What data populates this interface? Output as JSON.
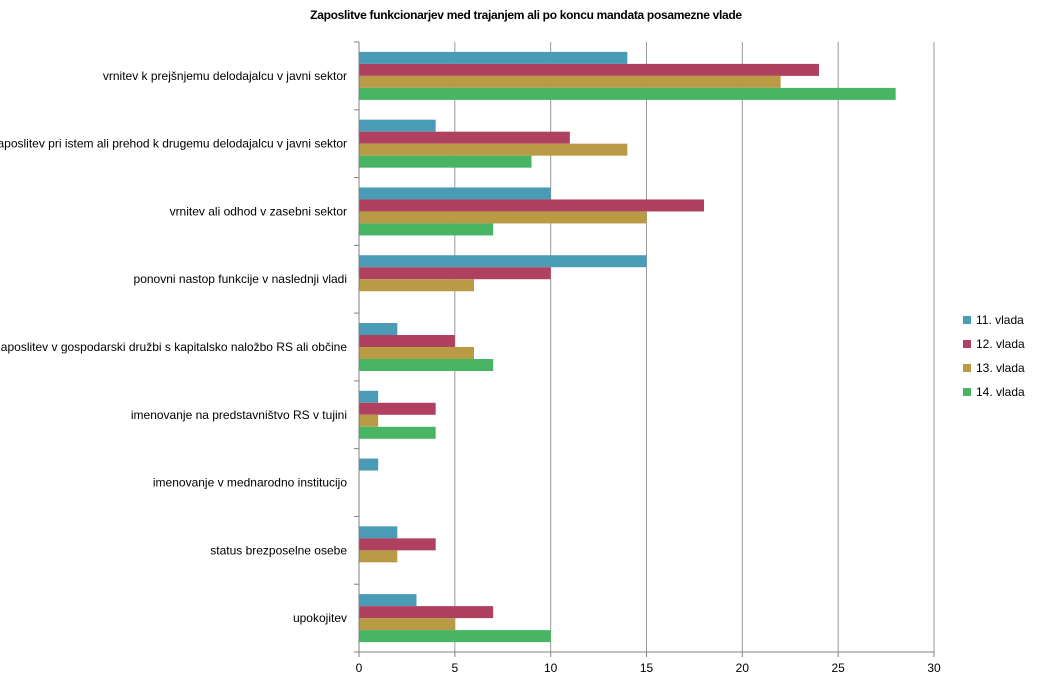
{
  "chart_data": {
    "type": "bar",
    "orientation": "horizontal",
    "title": "Zaposlitve funkcionarjev med trajanjem ali po koncu mandata posamezne vlade",
    "xlabel": "",
    "ylabel": "",
    "xlim": [
      0,
      30
    ],
    "x_ticks": [
      "0",
      "5",
      "10",
      "15",
      "20",
      "25",
      "30"
    ],
    "grid": "vertical",
    "legend_position": "right",
    "categories": [
      "vrnitev k prejšnjemu delodajalcu v javni sektor",
      "zaposlitev pri istem ali prehod k drugemu delodajalcu v javni sektor",
      "vrnitev ali odhod v zasebni sektor",
      "ponovni nastop funkcije v naslednji vladi",
      "zaposlitev v gospodarski družbi s kapitalsko naložbo RS ali občine",
      "imenovanje na predstavništvo RS v tujini",
      "imenovanje v mednarodno institucijo",
      "status brezposelne osebe",
      "upokojitev"
    ],
    "series": [
      {
        "name": "11. vlada",
        "color": "#4A9BB5",
        "values": [
          14,
          4,
          10,
          15,
          2,
          1,
          1,
          2,
          3
        ]
      },
      {
        "name": "12. vlada",
        "color": "#B0405F",
        "values": [
          24,
          11,
          18,
          10,
          5,
          4,
          0,
          4,
          7
        ]
      },
      {
        "name": "13. vlada",
        "color": "#B99A45",
        "values": [
          22,
          14,
          15,
          6,
          6,
          1,
          0,
          2,
          5
        ]
      },
      {
        "name": "14. vlada",
        "color": "#48B565",
        "values": [
          28,
          9,
          7,
          0,
          7,
          4,
          0,
          0,
          10
        ]
      }
    ]
  }
}
